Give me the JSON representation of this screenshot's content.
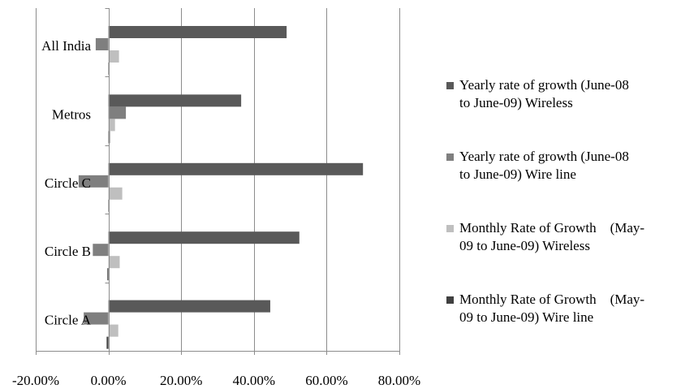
{
  "chart_data": {
    "type": "bar",
    "orientation": "horizontal",
    "categories": [
      "All India",
      "Metros",
      "Circle C",
      "Circle B",
      "Circle A"
    ],
    "series": [
      {
        "name": "Yearly rate of growth (June-08\nto June-09) Wireless",
        "color": "#595959",
        "values": [
          49.0,
          36.5,
          70.0,
          52.5,
          44.5
        ]
      },
      {
        "name": "Yearly rate of growth (June-08\nto June-09) Wire line",
        "color": "#7f7f7f",
        "values": [
          -3.5,
          4.8,
          -8.2,
          -4.3,
          -6.8
        ]
      },
      {
        "name": "Monthly Rate of Growth    (May-\n09 to June-09) Wireless",
        "color": "#bfbfbf",
        "values": [
          2.9,
          1.8,
          3.8,
          3.1,
          2.7
        ]
      },
      {
        "name": "Monthly Rate of Growth    (May-\n09 to June-09) Wire line",
        "color": "#404040",
        "values": [
          0.0,
          0.4,
          0.0,
          -0.3,
          -0.5
        ]
      }
    ],
    "xlim": [
      -20,
      80
    ],
    "xticks": [
      -20,
      0,
      20,
      40,
      60,
      80
    ],
    "xtick_labels": [
      "-20.00%",
      "0.00%",
      "20.00%",
      "40.00%",
      "60.00%",
      "80.00%"
    ],
    "grid": "vertical",
    "legend_position": "right"
  }
}
